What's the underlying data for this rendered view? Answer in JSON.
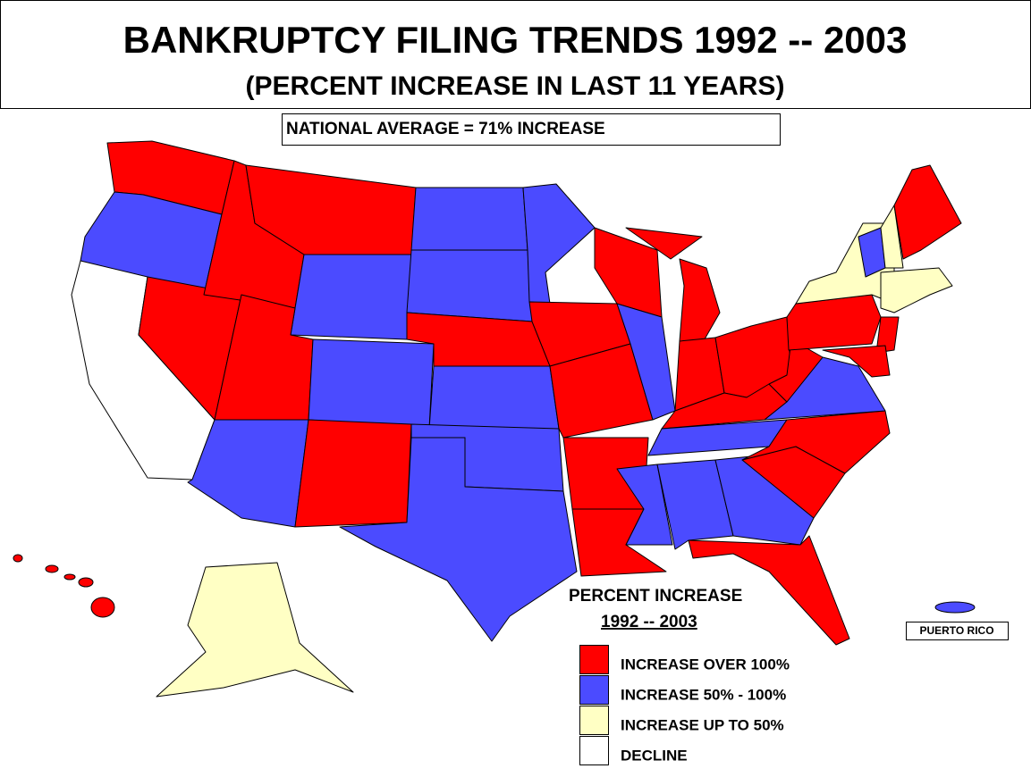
{
  "header": {
    "title": "BANKRUPTCY FILING TRENDS  1992 -- 2003",
    "subtitle": "(PERCENT INCREASE IN LAST 11 YEARS)"
  },
  "note": "NATIONAL AVERAGE  = 71% INCREASE",
  "legend": {
    "title": "PERCENT INCREASE",
    "subtitle": "1992 -- 2003",
    "items": [
      {
        "label": "INCREASE OVER 100%",
        "color": "#ff0000"
      },
      {
        "label": "INCREASE 50% - 100%",
        "color": "#4b4bff"
      },
      {
        "label": "INCREASE UP TO 50%",
        "color": "#ffffc4"
      },
      {
        "label": "DECLINE",
        "color": "#ffffff"
      }
    ]
  },
  "territory_label": "PUERTO RICO"
}
